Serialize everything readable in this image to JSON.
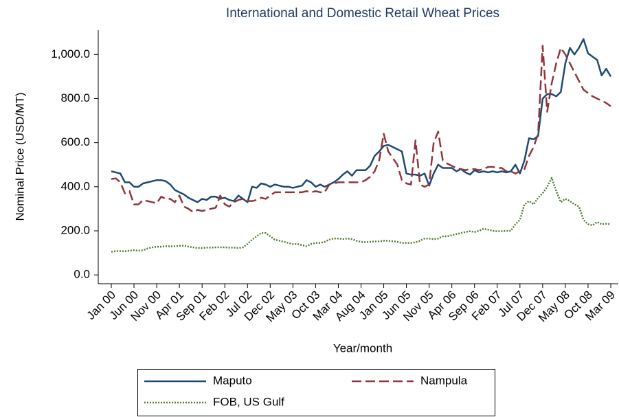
{
  "chart_data": {
    "type": "line",
    "title": "International and Domestic Retail Wheat Prices",
    "x_label": "Year/month",
    "y_label": "Nominal Price (USD/MT)",
    "categories": [
      "Jan 00",
      null,
      null,
      null,
      null,
      "Jun 00",
      null,
      null,
      null,
      null,
      "Nov 00",
      null,
      null,
      null,
      null,
      "Apr 01",
      null,
      null,
      null,
      null,
      "Sep 01",
      null,
      null,
      null,
      null,
      "Feb 02",
      null,
      null,
      null,
      null,
      "Jul 02",
      null,
      null,
      null,
      null,
      "Dec 02",
      null,
      null,
      null,
      null,
      "May 03",
      null,
      null,
      null,
      null,
      "Oct 03",
      null,
      null,
      null,
      null,
      "Mar 04",
      null,
      null,
      null,
      null,
      "Aug 04",
      null,
      null,
      null,
      null,
      "Jan 05",
      null,
      null,
      null,
      null,
      "Jun 05",
      null,
      null,
      null,
      null,
      "Nov 05",
      null,
      null,
      null,
      null,
      "Apr 06",
      null,
      null,
      null,
      null,
      "Sep 06",
      null,
      null,
      null,
      null,
      "Feb 07",
      null,
      null,
      null,
      null,
      "Jul 07",
      null,
      null,
      null,
      null,
      "Dec 07",
      null,
      null,
      null,
      null,
      "May 08",
      null,
      null,
      null,
      null,
      "Oct 08",
      null,
      null,
      null,
      null,
      "Mar 09"
    ],
    "series": [
      {
        "name": "Maputo",
        "color": "#1b4a73",
        "dash": "solid",
        "values": [
          470,
          465,
          460,
          420,
          420,
          400,
          400,
          415,
          420,
          425,
          430,
          430,
          425,
          410,
          385,
          375,
          365,
          350,
          340,
          330,
          345,
          340,
          355,
          355,
          345,
          350,
          340,
          335,
          360,
          345,
          330,
          400,
          395,
          415,
          410,
          400,
          410,
          405,
          400,
          400,
          395,
          400,
          405,
          430,
          420,
          400,
          410,
          400,
          410,
          420,
          435,
          455,
          470,
          450,
          475,
          475,
          475,
          495,
          540,
          560,
          585,
          590,
          580,
          570,
          560,
          460,
          455,
          455,
          450,
          460,
          405,
          460,
          500,
          485,
          485,
          485,
          470,
          480,
          465,
          455,
          475,
          465,
          470,
          465,
          470,
          465,
          470,
          465,
          470,
          500,
          460,
          520,
          620,
          615,
          630,
          800,
          820,
          820,
          810,
          830,
          960,
          1030,
          1000,
          1030,
          1070,
          1005,
          990,
          975,
          905,
          935,
          900
        ]
      },
      {
        "name": "Nampula",
        "color": "#90353b",
        "dash": "dashed",
        "values": [
          435,
          438,
          420,
          370,
          380,
          320,
          320,
          340,
          335,
          330,
          325,
          355,
          345,
          345,
          330,
          360,
          310,
          300,
          285,
          295,
          290,
          295,
          300,
          305,
          360,
          320,
          310,
          330,
          340,
          345,
          335,
          335,
          340,
          350,
          345,
          360,
          375,
          375,
          375,
          375,
          375,
          375,
          375,
          380,
          375,
          380,
          375,
          375,
          410,
          415,
          420,
          420,
          420,
          420,
          420,
          420,
          430,
          445,
          470,
          520,
          640,
          560,
          530,
          500,
          430,
          415,
          410,
          610,
          410,
          400,
          410,
          600,
          650,
          520,
          505,
          495,
          485,
          480,
          475,
          480,
          480,
          475,
          480,
          490,
          490,
          485,
          485,
          470,
          470,
          460,
          470,
          480,
          540,
          580,
          640,
          1040,
          740,
          870,
          960,
          1030,
          1000,
          960,
          920,
          880,
          840,
          825,
          810,
          800,
          790,
          780,
          765
        ]
      },
      {
        "name": "FOB, US Gulf",
        "color": "#4e7a30",
        "dash": "dotted",
        "values": [
          105,
          108,
          108,
          107,
          110,
          112,
          110,
          112,
          120,
          125,
          128,
          128,
          130,
          130,
          130,
          132,
          133,
          128,
          125,
          122,
          122,
          124,
          124,
          125,
          125,
          125,
          124,
          124,
          122,
          125,
          140,
          160,
          175,
          190,
          190,
          175,
          160,
          155,
          150,
          145,
          140,
          140,
          135,
          130,
          140,
          145,
          145,
          150,
          160,
          165,
          165,
          163,
          165,
          162,
          155,
          150,
          148,
          150,
          152,
          152,
          155,
          155,
          153,
          150,
          145,
          145,
          145,
          148,
          155,
          165,
          165,
          162,
          165,
          175,
          175,
          180,
          185,
          190,
          195,
          198,
          195,
          200,
          210,
          205,
          200,
          198,
          198,
          200,
          200,
          230,
          250,
          320,
          335,
          320,
          350,
          370,
          400,
          440,
          380,
          330,
          345,
          335,
          320,
          310,
          250,
          230,
          225,
          240,
          230,
          232,
          230
        ]
      }
    ],
    "ylim": [
      -40,
      1110
    ],
    "yticks": [
      {
        "value": 0,
        "label": "0.0"
      },
      {
        "value": 200,
        "label": "200.0"
      },
      {
        "value": 400,
        "label": "400.0"
      },
      {
        "value": 600,
        "label": "600.0"
      },
      {
        "value": 800,
        "label": "800.0"
      },
      {
        "value": 1000,
        "label": "1,000.0"
      }
    ],
    "grid": false,
    "legend": "bottom"
  }
}
